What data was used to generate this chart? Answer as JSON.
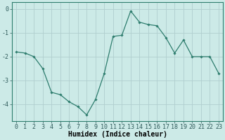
{
  "x": [
    0,
    1,
    2,
    3,
    4,
    5,
    6,
    7,
    8,
    9,
    10,
    11,
    12,
    13,
    14,
    15,
    16,
    17,
    18,
    19,
    20,
    21,
    22,
    23
  ],
  "y": [
    -1.8,
    -1.85,
    -2.0,
    -2.5,
    -3.5,
    -3.6,
    -3.9,
    -4.1,
    -4.45,
    -3.8,
    -2.7,
    -1.15,
    -1.1,
    -0.08,
    -0.55,
    -0.65,
    -0.7,
    -1.2,
    -1.85,
    -1.3,
    -2.0,
    -2.0,
    -2.0,
    -2.7
  ],
  "line_color": "#2e7d6e",
  "marker": "D",
  "marker_size": 1.8,
  "background_color": "#cceae7",
  "grid_color": "#b0cece",
  "xlabel": "Humidex (Indice chaleur)",
  "xlabel_fontsize": 7,
  "xlim": [
    -0.5,
    23.5
  ],
  "ylim": [
    -4.7,
    0.3
  ],
  "yticks": [
    0,
    -1,
    -2,
    -3,
    -4
  ],
  "xticks": [
    0,
    1,
    2,
    3,
    4,
    5,
    6,
    7,
    8,
    9,
    10,
    11,
    12,
    13,
    14,
    15,
    16,
    17,
    18,
    19,
    20,
    21,
    22,
    23
  ],
  "tick_fontsize": 6,
  "line_width": 0.9
}
